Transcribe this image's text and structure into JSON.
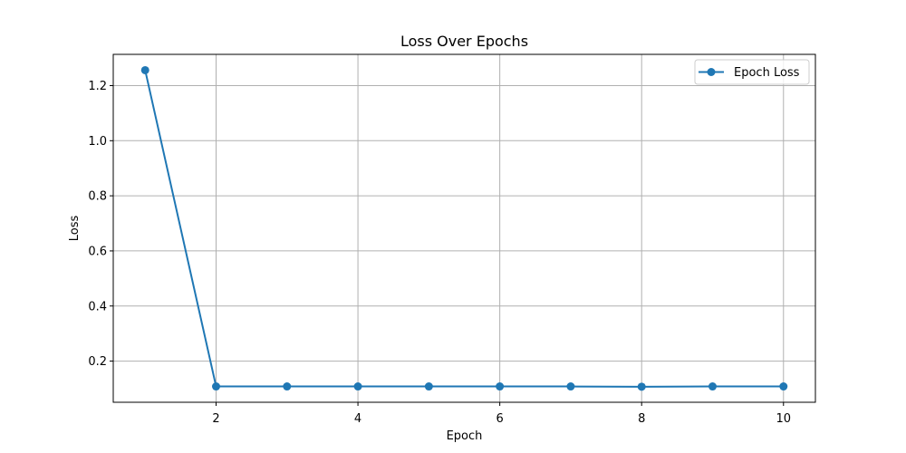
{
  "chart_data": {
    "type": "line",
    "title": "Loss Over Epochs",
    "xlabel": "Epoch",
    "ylabel": "Loss",
    "x": [
      1,
      2,
      3,
      4,
      5,
      6,
      7,
      8,
      9,
      10
    ],
    "series": [
      {
        "name": "Epoch Loss",
        "values": [
          1.256,
          0.108,
          0.108,
          0.108,
          0.108,
          0.108,
          0.108,
          0.107,
          0.108,
          0.108
        ],
        "color": "#1f77b4",
        "marker": "circle"
      }
    ],
    "xlim": [
      0.55,
      10.45
    ],
    "ylim": [
      0.0506,
      1.3134
    ],
    "xticks": [
      2,
      4,
      6,
      8,
      10
    ],
    "xtick_labels": [
      "2",
      "4",
      "6",
      "8",
      "10"
    ],
    "yticks": [
      0.2,
      0.4,
      0.6,
      0.8,
      1.0,
      1.2
    ],
    "ytick_labels": [
      "0.2",
      "0.4",
      "0.6",
      "0.8",
      "1.0",
      "1.2"
    ],
    "grid": true,
    "grid_color": "#b0b0b0",
    "legend_position": "top-right"
  }
}
